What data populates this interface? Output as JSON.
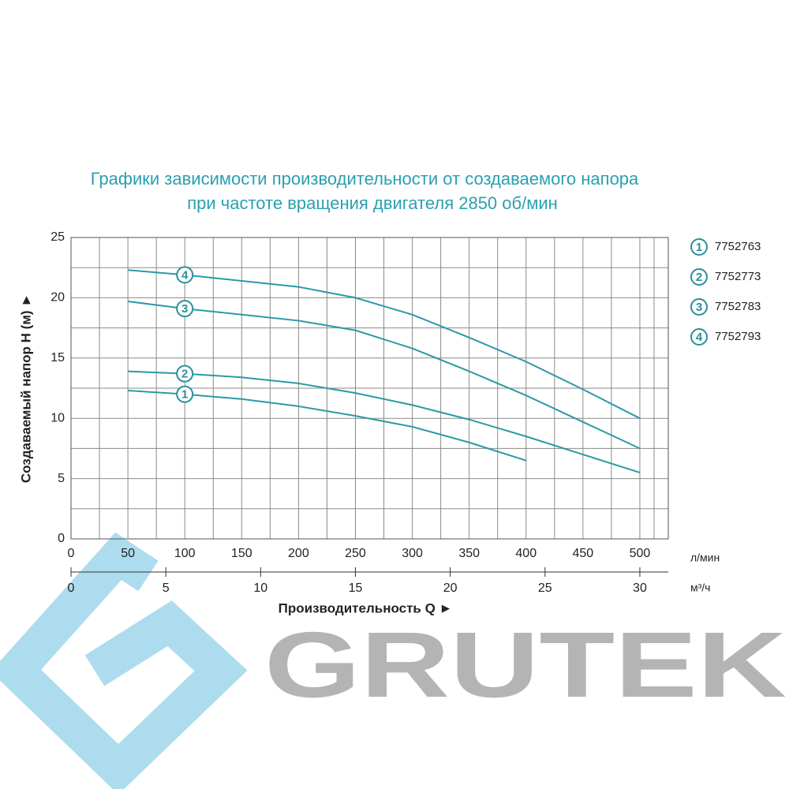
{
  "chart_data": {
    "type": "line",
    "title": "Графики зависимости производительности от создаваемого напора",
    "subtitle": "при частоте вращения двигателя 2850 об/мин",
    "y_label": "Создаваемый напор H (м) ►",
    "x_label": "Производительность Q ►",
    "x_unit": "л/мин",
    "x2_unit": "м³/ч",
    "xlim": [
      0,
      525
    ],
    "xticks": [
      0,
      50,
      100,
      150,
      200,
      250,
      300,
      350,
      400,
      450,
      500
    ],
    "ylim": [
      0,
      25
    ],
    "yticks": [
      0,
      5,
      10,
      15,
      20,
      25
    ],
    "x2lim": [
      0,
      31.5
    ],
    "x2ticks": [
      0,
      5,
      10,
      15,
      20,
      25,
      30
    ],
    "grid": true,
    "x": [
      50,
      100,
      150,
      200,
      250,
      300,
      350,
      400,
      450,
      500
    ],
    "series": [
      {
        "name": "7752763",
        "label": "1",
        "color": "#2a9aa6",
        "values": [
          12.3,
          12.0,
          11.6,
          11.0,
          10.2,
          9.3,
          8.0,
          6.5,
          null,
          null
        ]
      },
      {
        "name": "7752773",
        "label": "2",
        "color": "#2a9aa6",
        "values": [
          13.9,
          13.7,
          13.4,
          12.9,
          12.1,
          11.1,
          9.9,
          8.5,
          7.0,
          5.5
        ]
      },
      {
        "name": "7752783",
        "label": "3",
        "color": "#2a9aa6",
        "values": [
          19.7,
          19.1,
          18.6,
          18.1,
          17.3,
          15.8,
          13.9,
          11.9,
          9.7,
          7.5
        ]
      },
      {
        "name": "7752793",
        "label": "4",
        "color": "#2a9aa6",
        "values": [
          22.3,
          21.9,
          21.4,
          20.9,
          20.0,
          18.6,
          16.7,
          14.7,
          12.4,
          10.0
        ]
      }
    ]
  },
  "logo": {
    "text": "GRUTEK"
  }
}
